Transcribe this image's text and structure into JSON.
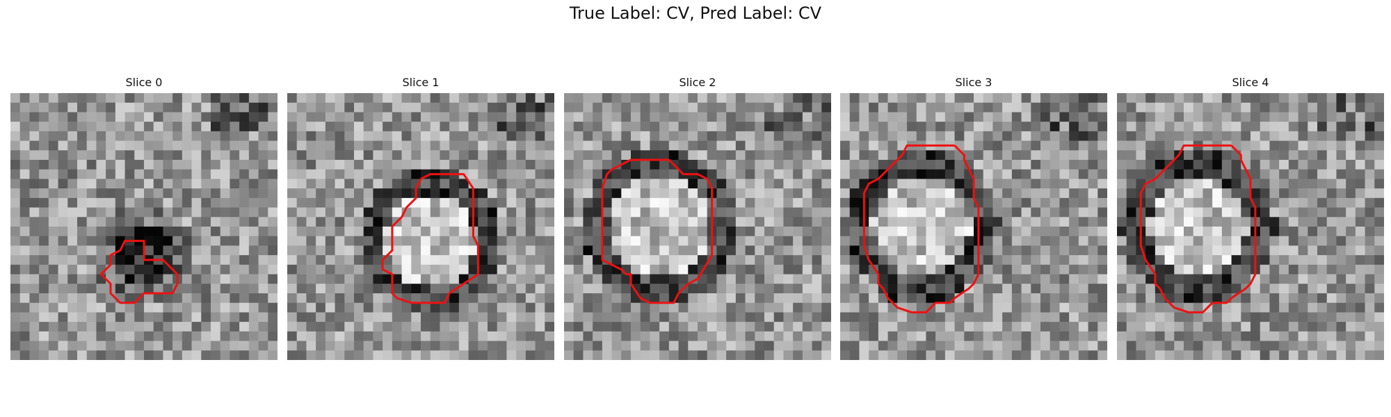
{
  "figure": {
    "title": "True Label: CV, Pred Label: CV"
  },
  "panels": [
    {
      "title": "Slice 0",
      "image": "grayscale-mri-patch",
      "contour_color": "#ee1111",
      "contour": [
        [
          14,
          17.5
        ],
        [
          16,
          17.5
        ],
        [
          17.5,
          19
        ],
        [
          17.5,
          20
        ],
        [
          17,
          21
        ],
        [
          14,
          21
        ],
        [
          13,
          22
        ],
        [
          11.5,
          22
        ],
        [
          10.5,
          21
        ],
        [
          10.5,
          20
        ],
        [
          9.5,
          19
        ],
        [
          10.5,
          18
        ],
        [
          10.5,
          17
        ],
        [
          11.5,
          16.5
        ],
        [
          12,
          15.5
        ],
        [
          14,
          15.5
        ],
        [
          14,
          17.5
        ]
      ],
      "blob": {
        "cx": 14,
        "cy": 17,
        "r": 5.5,
        "dark": true
      }
    },
    {
      "title": "Slice 1",
      "image": "grayscale-mri-patch",
      "contour_color": "#ee1111",
      "contour": [
        [
          14,
          9
        ],
        [
          15,
          8.5
        ],
        [
          18.5,
          8.5
        ],
        [
          19.5,
          10
        ],
        [
          19.5,
          15
        ],
        [
          20,
          16
        ],
        [
          20,
          19
        ],
        [
          18.5,
          20
        ],
        [
          17,
          21
        ],
        [
          16.5,
          22
        ],
        [
          13,
          22
        ],
        [
          11.5,
          21.5
        ],
        [
          11,
          21
        ],
        [
          11,
          19
        ],
        [
          10,
          18.5
        ],
        [
          10,
          17.5
        ],
        [
          11,
          16.5
        ],
        [
          11,
          14
        ],
        [
          12,
          13
        ],
        [
          12.5,
          12
        ],
        [
          13.5,
          11
        ],
        [
          13.5,
          10
        ],
        [
          14,
          9
        ]
      ],
      "blob": {
        "cx": 15,
        "cy": 15.5,
        "r": 6,
        "dark": false
      }
    },
    {
      "title": "Slice 2",
      "image": "grayscale-mri-patch",
      "contour_color": "#ee1111",
      "contour": [
        [
          8.5,
          7
        ],
        [
          11,
          7
        ],
        [
          12,
          8
        ],
        [
          12.5,
          8.5
        ],
        [
          14,
          8.5
        ],
        [
          15,
          9
        ],
        [
          15.5,
          10
        ],
        [
          15.5,
          15
        ],
        [
          15.5,
          17
        ],
        [
          14,
          19.5
        ],
        [
          13,
          20
        ],
        [
          12,
          21
        ],
        [
          11.5,
          22
        ],
        [
          9,
          22
        ],
        [
          8,
          21.5
        ],
        [
          7,
          20
        ],
        [
          7,
          19
        ],
        [
          6.5,
          19
        ],
        [
          6,
          18.5
        ],
        [
          5,
          18
        ],
        [
          4,
          17.5
        ],
        [
          4,
          10
        ],
        [
          4.5,
          8.5
        ],
        [
          5,
          8
        ],
        [
          7,
          7
        ],
        [
          8.5,
          7
        ]
      ],
      "blob": {
        "cx": 10,
        "cy": 14,
        "r": 6.5,
        "dark": false
      }
    },
    {
      "title": "Slice 3",
      "image": "grayscale-mri-patch",
      "contour_color": "#ee1111",
      "contour": [
        [
          12,
          5.5
        ],
        [
          13,
          6.5
        ],
        [
          13,
          7
        ],
        [
          13.5,
          8
        ],
        [
          14,
          9
        ],
        [
          14,
          11
        ],
        [
          14.5,
          12
        ],
        [
          14.5,
          19
        ],
        [
          14,
          20
        ],
        [
          13.5,
          20.5
        ],
        [
          12,
          21.5
        ],
        [
          11.5,
          22
        ],
        [
          10,
          22
        ],
        [
          9,
          23
        ],
        [
          7.5,
          23
        ],
        [
          6,
          22.5
        ],
        [
          5,
          21.5
        ],
        [
          4.5,
          20.5
        ],
        [
          4,
          20
        ],
        [
          4,
          19
        ],
        [
          3,
          17.5
        ],
        [
          2.5,
          16
        ],
        [
          2.5,
          10.5
        ],
        [
          3,
          9.5
        ],
        [
          4,
          9
        ],
        [
          5,
          8
        ],
        [
          6.5,
          6.5
        ],
        [
          7,
          5.5
        ],
        [
          12,
          5.5
        ]
      ],
      "blob": {
        "cx": 8.5,
        "cy": 14,
        "r": 6.5,
        "dark": false
      }
    },
    {
      "title": "Slice 4",
      "image": "grayscale-mri-patch",
      "contour_color": "#ee1111",
      "contour": [
        [
          12,
          5.5
        ],
        [
          13,
          6.5
        ],
        [
          13,
          7
        ],
        [
          13.5,
          8
        ],
        [
          14,
          9
        ],
        [
          14,
          11
        ],
        [
          14.5,
          12
        ],
        [
          14.5,
          19
        ],
        [
          14,
          20
        ],
        [
          13.5,
          20.5
        ],
        [
          12,
          21.5
        ],
        [
          11.5,
          22
        ],
        [
          10,
          22
        ],
        [
          9,
          23
        ],
        [
          7.5,
          23
        ],
        [
          6,
          22.5
        ],
        [
          5,
          21.5
        ],
        [
          4.5,
          20.5
        ],
        [
          4,
          20
        ],
        [
          4,
          19
        ],
        [
          3,
          17.5
        ],
        [
          2.5,
          16
        ],
        [
          2.5,
          10.5
        ],
        [
          3,
          9.5
        ],
        [
          4,
          9
        ],
        [
          5,
          8
        ],
        [
          6.5,
          6.5
        ],
        [
          7,
          5.5
        ],
        [
          12,
          5.5
        ]
      ],
      "blob": {
        "cx": 8.5,
        "cy": 14,
        "r": 6.5,
        "dark": false
      }
    }
  ]
}
